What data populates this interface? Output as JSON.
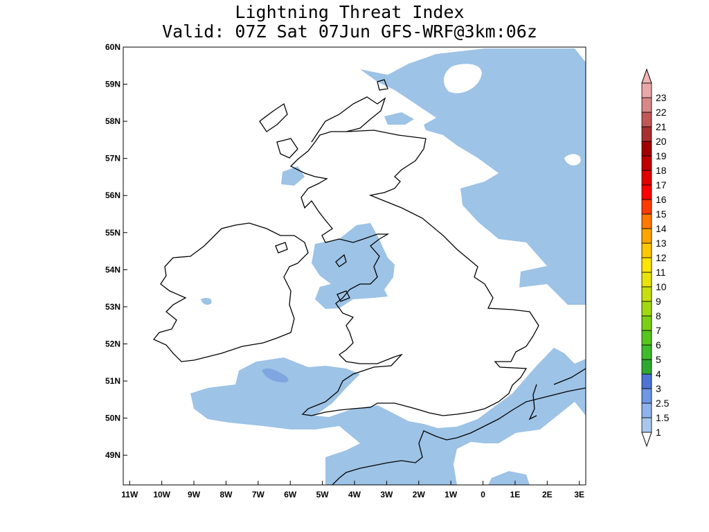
{
  "title": {
    "line1": "Lightning Threat Index",
    "line2": "Valid: 07Z Sat 07Jun GFS-WRF@3km:06z"
  },
  "map": {
    "lat_labels": [
      "60N",
      "59N",
      "58N",
      "57N",
      "56N",
      "55N",
      "54N",
      "53N",
      "52N",
      "51N",
      "50N",
      "49N"
    ],
    "lon_labels": [
      "11W",
      "10W",
      "9W",
      "8W",
      "7W",
      "6W",
      "5W",
      "4W",
      "3W",
      "2W",
      "1W",
      "0",
      "1E",
      "2E",
      "3E"
    ],
    "lat_values": [
      60,
      59,
      58,
      57,
      56,
      55,
      54,
      53,
      52,
      51,
      50,
      49
    ],
    "lon_values": [
      -11,
      -10,
      -9,
      -8,
      -7,
      -6,
      -5,
      -4,
      -3,
      -2,
      -1,
      0,
      1,
      2,
      3
    ],
    "lon_range": [
      -11.2,
      3.2
    ],
    "lat_range": [
      48.2,
      60.0
    ],
    "coast_color": "#000000",
    "region_1_color": "#9dc3e6",
    "region_15_color": "#7fa6e0"
  },
  "colorbar": {
    "labels": [
      "1",
      "1.5",
      "2.5",
      "3",
      "4",
      "5",
      "6",
      "7",
      "8",
      "9",
      "10",
      "11",
      "12",
      "13",
      "14",
      "15",
      "16",
      "17",
      "18",
      "19",
      "20",
      "21",
      "22",
      "23"
    ],
    "colors": [
      "#a9c7ec",
      "#8fb3ea",
      "#6e97e4",
      "#4f74d6",
      "#2fa830",
      "#3fbb2c",
      "#58c61e",
      "#7dcf16",
      "#a2d811",
      "#c7df0c",
      "#e8e40a",
      "#ffe600",
      "#ffc800",
      "#ffa500",
      "#ff7b00",
      "#ff3c00",
      "#ff0000",
      "#e00000",
      "#c00000",
      "#a00000",
      "#a83030",
      "#c05858",
      "#d88888",
      "#e8a8a8"
    ],
    "under_color": "#ffffff",
    "over_color": "#f0b4b4"
  }
}
